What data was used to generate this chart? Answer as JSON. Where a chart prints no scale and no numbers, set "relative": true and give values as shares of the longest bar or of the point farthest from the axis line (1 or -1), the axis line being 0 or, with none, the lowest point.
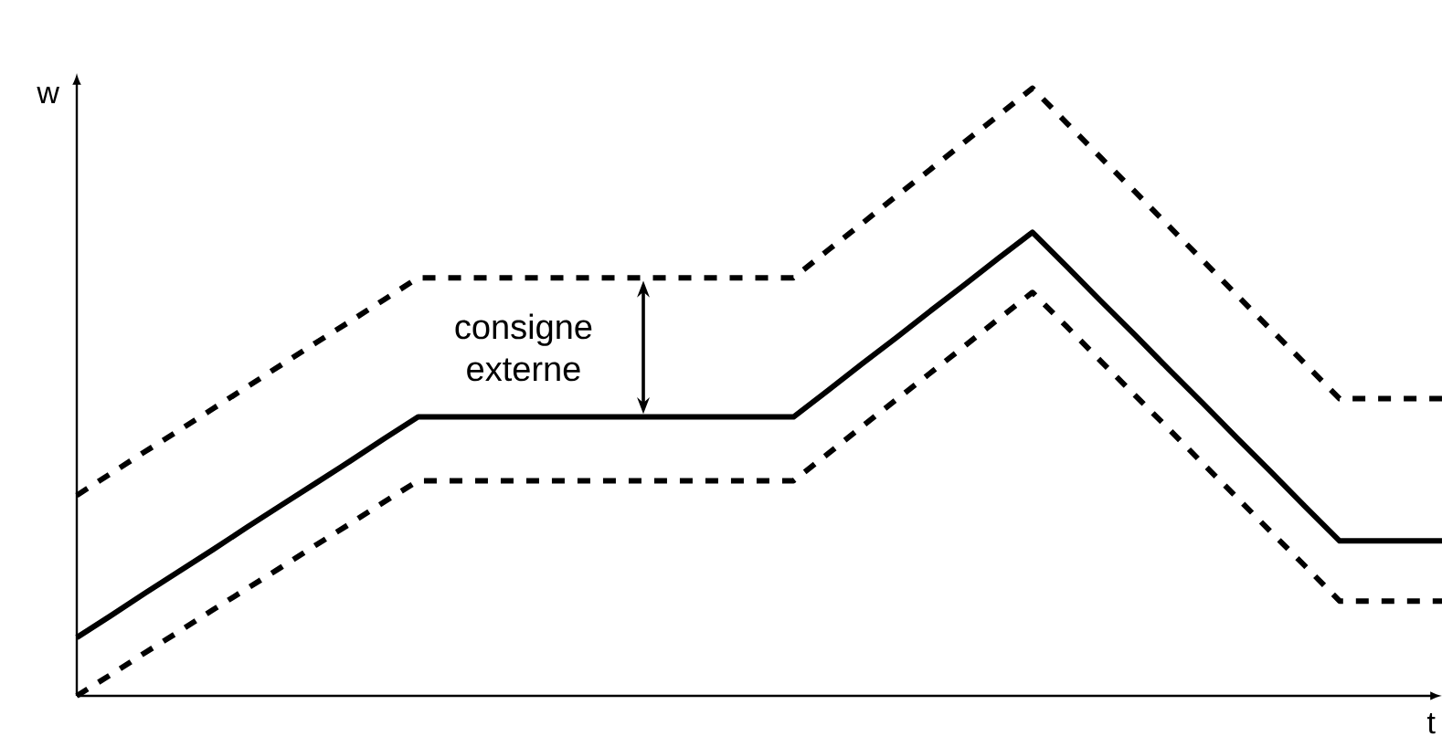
{
  "chart_data": {
    "type": "line",
    "relative": true,
    "xlabel": "t",
    "ylabel": "w",
    "categories": [
      null,
      null,
      null,
      null,
      null,
      null,
      null,
      null,
      null,
      null,
      null,
      null,
      null,
      null,
      null,
      null,
      null,
      null,
      null,
      null,
      null,
      null,
      null,
      null,
      null,
      null,
      null,
      null,
      null,
      null,
      null,
      null,
      null,
      null,
      null,
      null,
      null,
      null,
      null,
      null,
      null
    ],
    "series": [
      {
        "color": "#000000",
        "line_style": "solid",
        "values": [
          0.096,
          0.132,
          0.169,
          0.205,
          0.241,
          0.278,
          0.314,
          0.35,
          0.386,
          0.423,
          0.459,
          0.459,
          0.459,
          0.459,
          0.459,
          0.459,
          0.459,
          0.459,
          0.459,
          0.459,
          0.459,
          0.459,
          0.502,
          0.546,
          0.589,
          0.633,
          0.676,
          0.72,
          0.763,
          0.707,
          0.65,
          0.594,
          0.537,
          0.481,
          0.424,
          0.368,
          0.311,
          0.255,
          0.255,
          0.255,
          0.255
        ]
      },
      {
        "color": "#000000",
        "line_style": "dashed",
        "values": [
          0.33,
          0.366,
          0.402,
          0.437,
          0.473,
          0.509,
          0.545,
          0.581,
          0.616,
          0.652,
          0.688,
          0.688,
          0.688,
          0.688,
          0.688,
          0.688,
          0.688,
          0.688,
          0.688,
          0.688,
          0.688,
          0.688,
          0.733,
          0.777,
          0.822,
          0.866,
          0.911,
          0.955,
          1.0,
          0.943,
          0.886,
          0.83,
          0.773,
          0.716,
          0.659,
          0.602,
          0.546,
          0.489,
          0.489,
          0.489,
          0.489
        ]
      },
      {
        "color": "#000000",
        "line_style": "dashed",
        "values": [
          0.0,
          0.035,
          0.071,
          0.106,
          0.142,
          0.177,
          0.212,
          0.248,
          0.283,
          0.319,
          0.354,
          0.354,
          0.354,
          0.354,
          0.354,
          0.354,
          0.354,
          0.354,
          0.354,
          0.354,
          0.354,
          0.354,
          0.398,
          0.443,
          0.487,
          0.531,
          0.575,
          0.62,
          0.664,
          0.608,
          0.551,
          0.495,
          0.439,
          0.382,
          0.326,
          0.269,
          0.213,
          0.156,
          0.156,
          0.156,
          0.156
        ]
      }
    ],
    "annotations": [
      "consigne externe"
    ],
    "marker": "none"
  }
}
